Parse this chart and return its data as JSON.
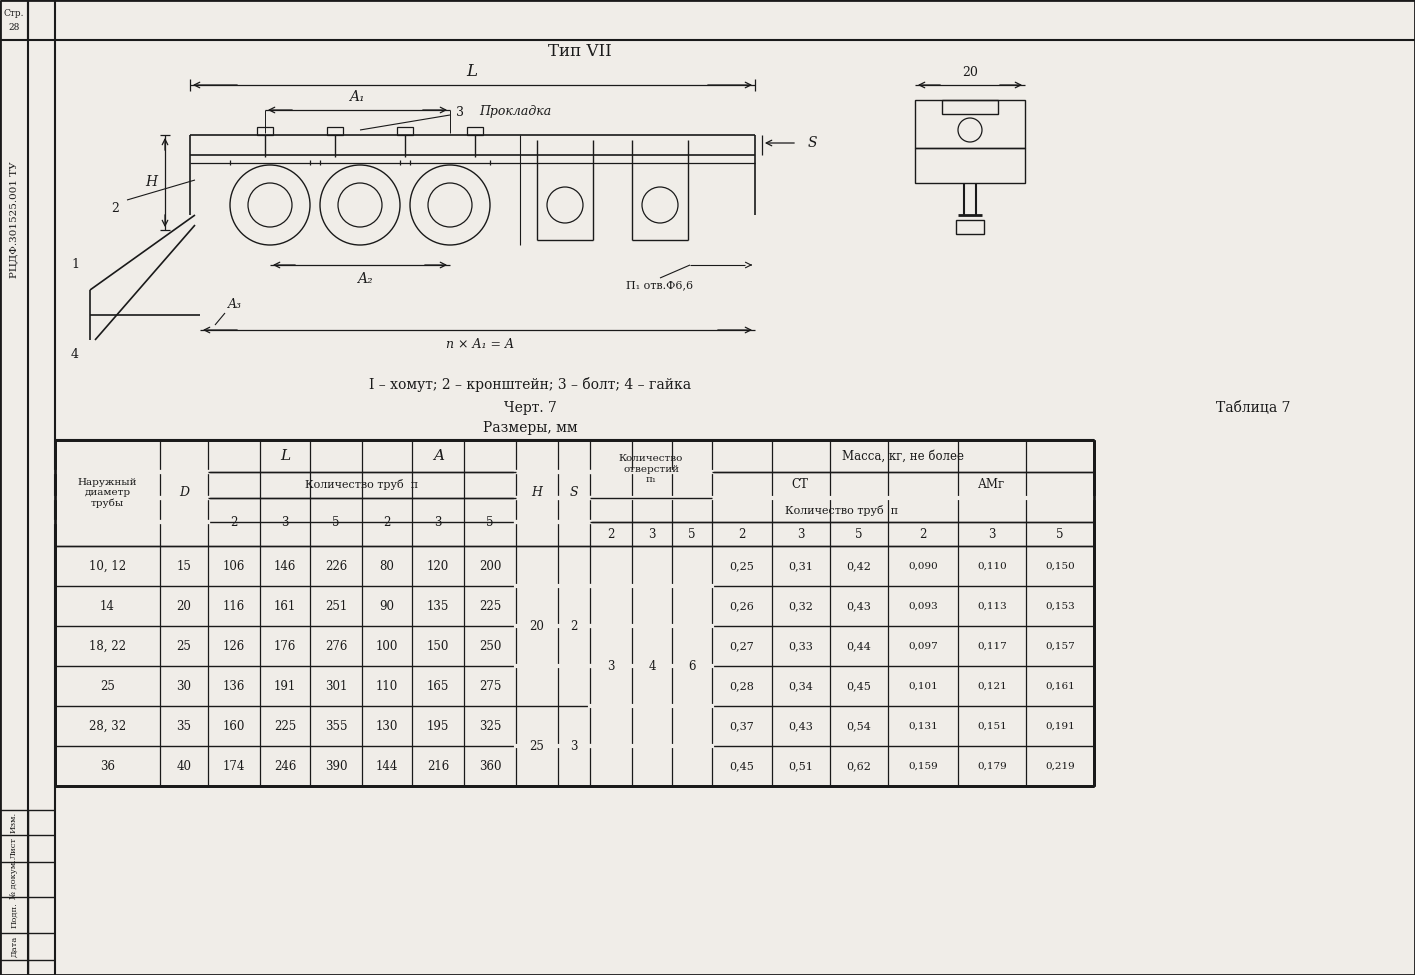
{
  "bg_color": "#f0ede8",
  "line_color": "#1a1a1a",
  "text_color": "#1a1a1a",
  "title": "Тип VII",
  "legend": "I – хомут; 2 – кронштейн; 3 – болт; 4 – гайка",
  "chert": "Черт. 7",
  "tablica": "Таблица 7",
  "razmery": "Размеры, мм",
  "sidebar": "РИДФ.301525.001 ТУ",
  "str28": "Стр.\n28",
  "data_rows": [
    [
      "10, 12",
      "15",
      "106",
      "146",
      "226",
      "80",
      "120",
      "200",
      "0,25",
      "0,31",
      "0,42",
      "0,090",
      "0,110",
      "0,150"
    ],
    [
      "14",
      "20",
      "116",
      "161",
      "251",
      "90",
      "135",
      "225",
      "0,26",
      "0,32",
      "0,43",
      "0,093",
      "0,113",
      "0,153"
    ],
    [
      "18, 22",
      "25",
      "126",
      "176",
      "276",
      "100",
      "150",
      "250",
      "0,27",
      "0,33",
      "0,44",
      "0,097",
      "0,117",
      "0,157"
    ],
    [
      "25",
      "30",
      "136",
      "191",
      "301",
      "110",
      "165",
      "275",
      "0,28",
      "0,34",
      "0,45",
      "0,101",
      "0,121",
      "0,161"
    ],
    [
      "28, 32",
      "35",
      "160",
      "225",
      "355",
      "130",
      "195",
      "325",
      "0,37",
      "0,43",
      "0,54",
      "0,131",
      "0,151",
      "0,191"
    ],
    [
      "36",
      "40",
      "174",
      "246",
      "390",
      "144",
      "216",
      "360",
      "0,45",
      "0,51",
      "0,62",
      "0,159",
      "0,179",
      "0,219"
    ]
  ],
  "H_vals": [
    "20",
    "",
    "",
    "",
    "25",
    ""
  ],
  "S_vals": [
    "2",
    "",
    "",
    "",
    "3",
    ""
  ],
  "n1_vals": [
    "",
    "",
    "3",
    "",
    "",
    ""
  ],
  "n2_vals": [
    "",
    "",
    "4",
    "",
    "",
    ""
  ],
  "n3_vals": [
    "",
    "",
    "6",
    "",
    "",
    ""
  ]
}
